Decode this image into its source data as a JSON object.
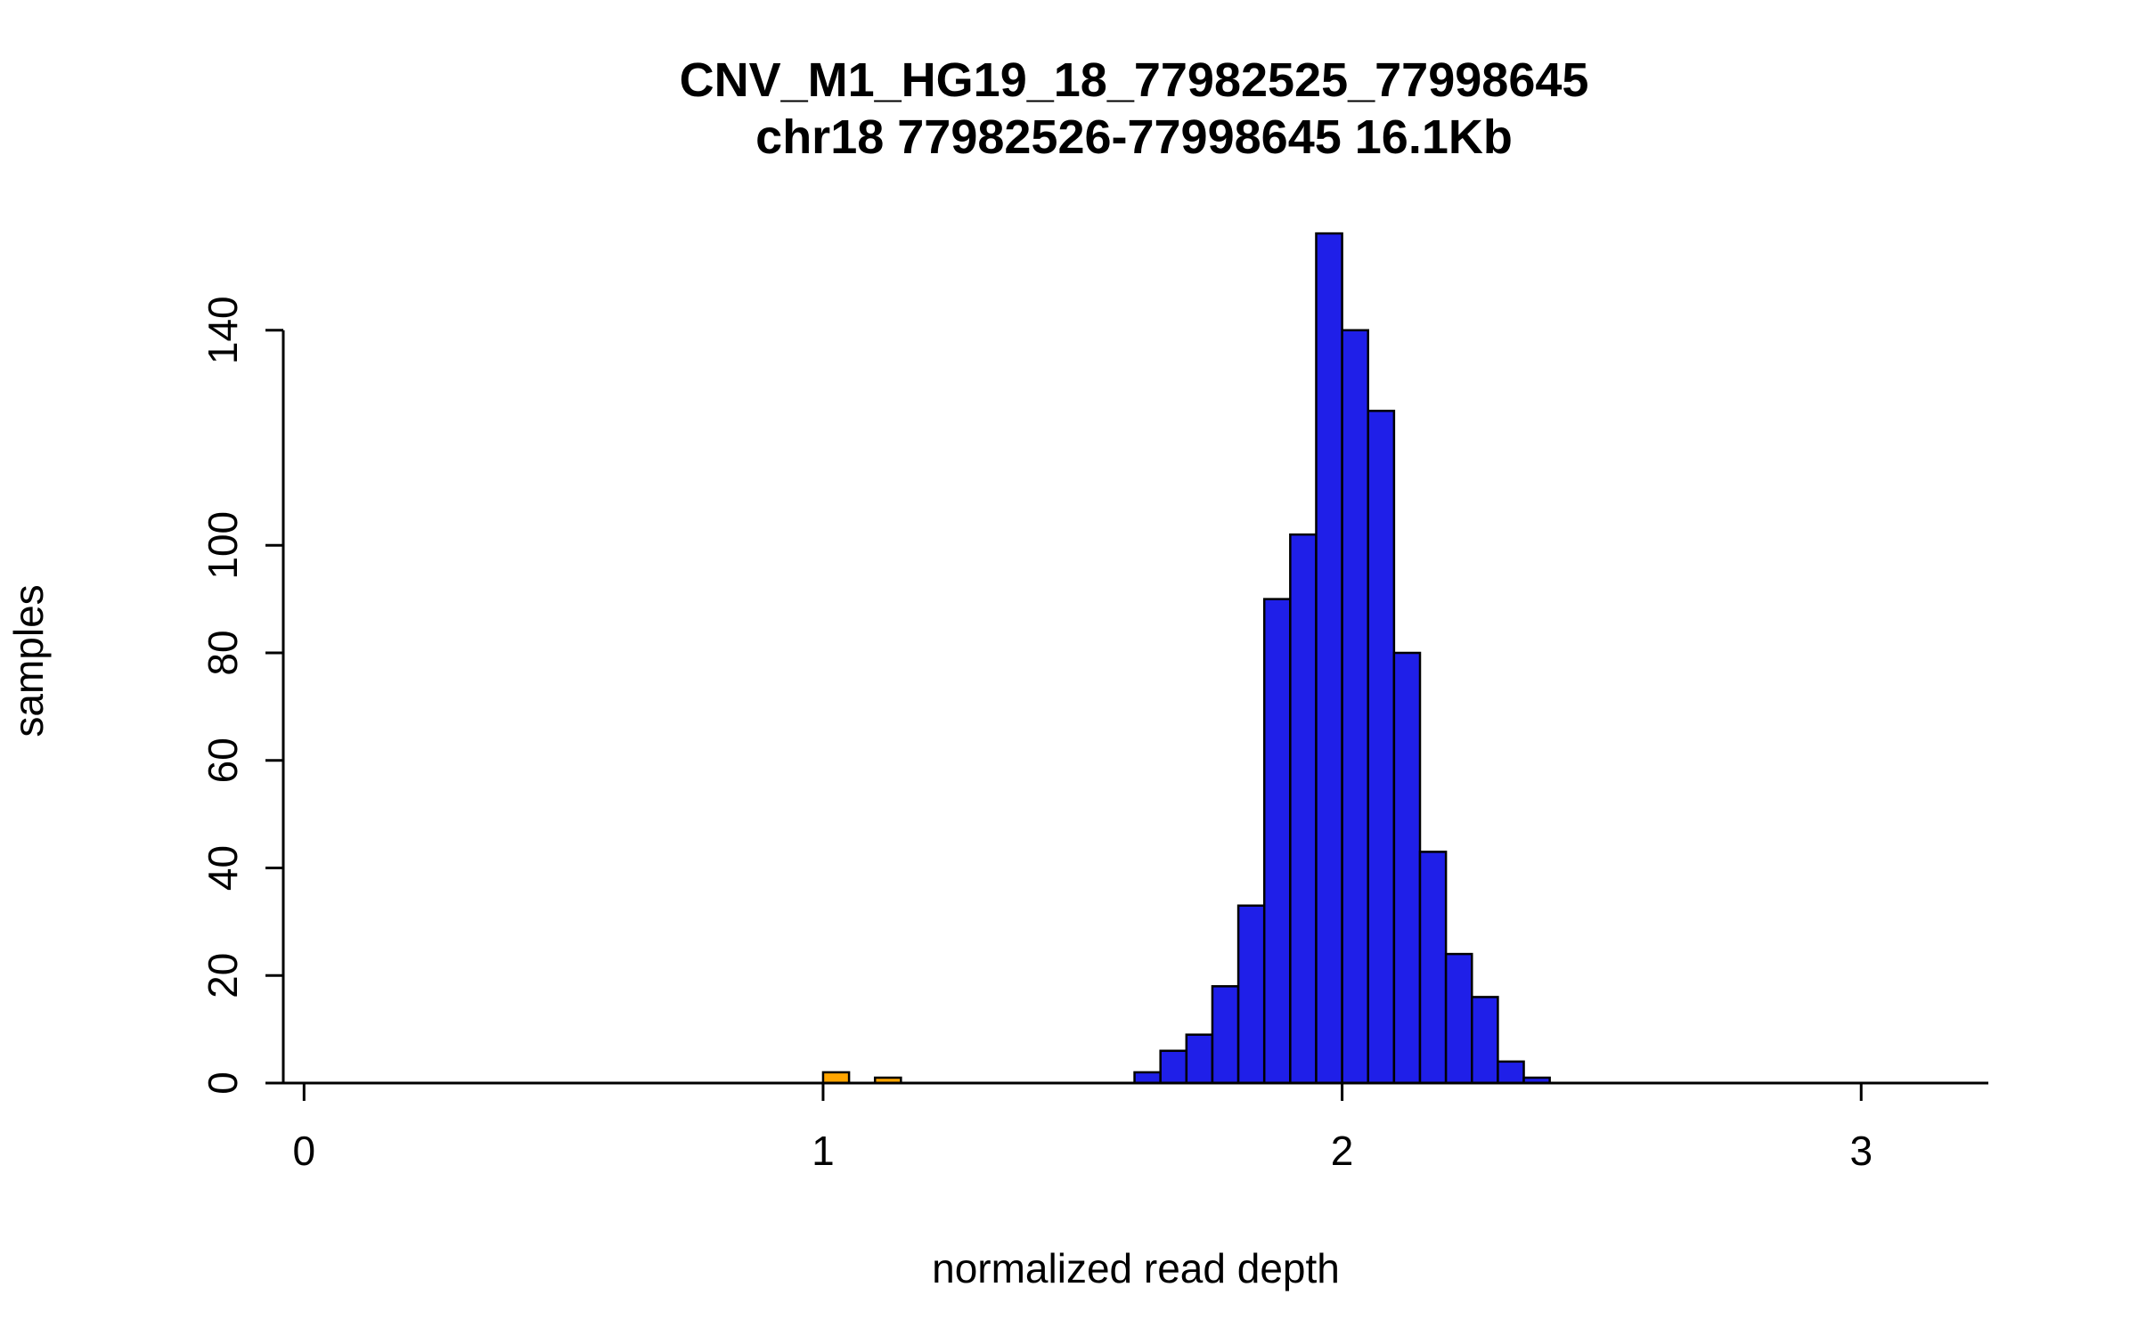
{
  "figure": {
    "background": "#ffffff"
  },
  "chart_data": {
    "type": "bar",
    "subtype": "histogram",
    "title": "CNV_M1_HG19_18_77982525_77998645",
    "subtitle": "chr18 77982526-77998645 16.1Kb",
    "xlabel": "normalized read depth",
    "ylabel": "samples",
    "xlim": [
      -0.04,
      3.245
    ],
    "ylim": [
      0,
      160
    ],
    "x_ticks": [
      0,
      1,
      2,
      3
    ],
    "y_ticks": [
      0,
      20,
      40,
      60,
      80,
      100,
      140
    ],
    "grid": false,
    "legend": "none",
    "bin_width": 0.05,
    "colors": {
      "main_bins": "#1f1fe8",
      "outlier_bins": "#ffa500",
      "bar_border": "#000000",
      "axis": "#000000",
      "text": "#000000"
    },
    "bins": [
      {
        "x0": 1.0,
        "x1": 1.05,
        "count": 2,
        "color": "#ffa500"
      },
      {
        "x0": 1.1,
        "x1": 1.15,
        "count": 1,
        "color": "#ffa500"
      },
      {
        "x0": 1.6,
        "x1": 1.65,
        "count": 2,
        "color": "#1f1fe8"
      },
      {
        "x0": 1.65,
        "x1": 1.7,
        "count": 6,
        "color": "#1f1fe8"
      },
      {
        "x0": 1.7,
        "x1": 1.75,
        "count": 9,
        "color": "#1f1fe8"
      },
      {
        "x0": 1.75,
        "x1": 1.8,
        "count": 18,
        "color": "#1f1fe8"
      },
      {
        "x0": 1.8,
        "x1": 1.85,
        "count": 33,
        "color": "#1f1fe8"
      },
      {
        "x0": 1.85,
        "x1": 1.9,
        "count": 90,
        "color": "#1f1fe8"
      },
      {
        "x0": 1.9,
        "x1": 1.95,
        "count": 102,
        "color": "#1f1fe8"
      },
      {
        "x0": 1.95,
        "x1": 2.0,
        "count": 158,
        "color": "#1f1fe8"
      },
      {
        "x0": 2.0,
        "x1": 2.05,
        "count": 140,
        "color": "#1f1fe8"
      },
      {
        "x0": 2.05,
        "x1": 2.1,
        "count": 125,
        "color": "#1f1fe8"
      },
      {
        "x0": 2.1,
        "x1": 2.15,
        "count": 80,
        "color": "#1f1fe8"
      },
      {
        "x0": 2.15,
        "x1": 2.2,
        "count": 43,
        "color": "#1f1fe8"
      },
      {
        "x0": 2.2,
        "x1": 2.25,
        "count": 24,
        "color": "#1f1fe8"
      },
      {
        "x0": 2.25,
        "x1": 2.3,
        "count": 16,
        "color": "#1f1fe8"
      },
      {
        "x0": 2.3,
        "x1": 2.35,
        "count": 4,
        "color": "#1f1fe8"
      },
      {
        "x0": 2.35,
        "x1": 2.4,
        "count": 1,
        "color": "#1f1fe8"
      }
    ]
  }
}
